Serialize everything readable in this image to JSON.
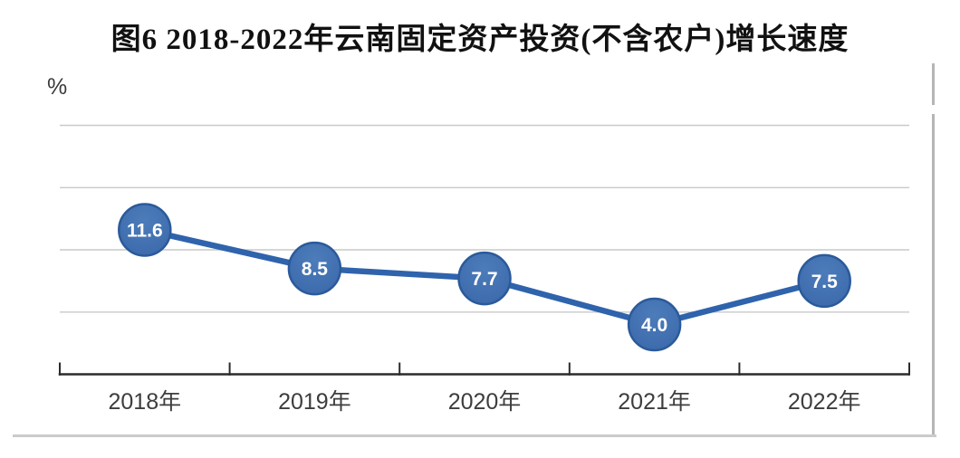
{
  "chart_data": {
    "type": "line",
    "title": "图6 2018-2022年云南固定资产投资(不含农户)增长速度",
    "unit_label": "%",
    "xlabel": "",
    "ylabel": "%",
    "categories": [
      "2018年",
      "2019年",
      "2020年",
      "2021年",
      "2022年"
    ],
    "values": [
      11.6,
      8.5,
      7.7,
      4.0,
      7.5
    ],
    "data_labels": [
      "11.6",
      "8.5",
      "7.7",
      "4.0",
      "7.5"
    ],
    "ylim": [
      0,
      20
    ],
    "ytick_step": 5,
    "grid": "horizontal",
    "legend": "none",
    "data_label_position": "inside-marker",
    "colors": {
      "line": "#2f63ac",
      "marker_fill": "#3a68aa",
      "marker_fill_highlight": "#4d7cba",
      "marker_stroke": "#2b5a9b",
      "data_label_text": "#ffffff",
      "gridline": "#c9c9c9",
      "axis": "#2b2b2b",
      "axis_label_text": "#3d3d3d",
      "title_text": "#111111",
      "page_border": "#b5b5b5"
    }
  }
}
